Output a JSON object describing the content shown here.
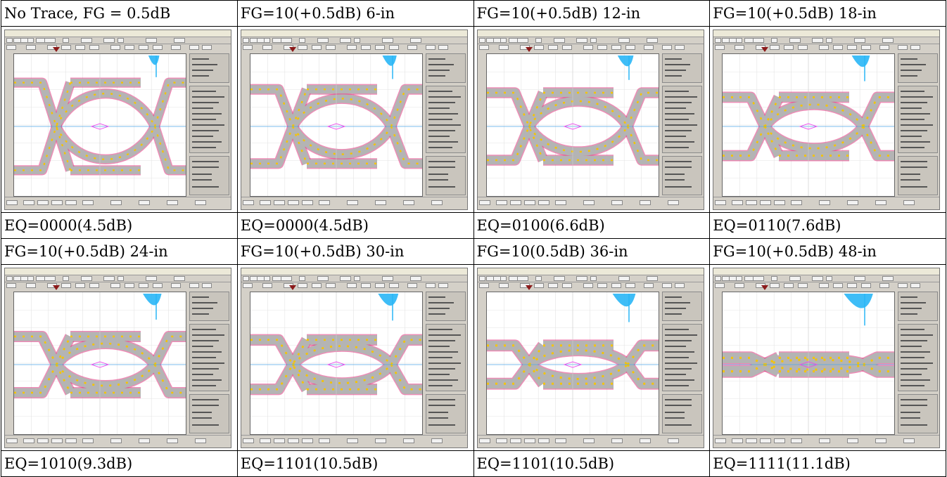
{
  "rows": [
    {
      "captions": [
        "No Trace,  FG = 0.5dB",
        "FG=10(+0.5dB)  6-in",
        "FG=10(+0.5dB)  12-in",
        "FG=10(+0.5dB)  18-in"
      ],
      "eq": [
        "EQ=0000(4.5dB)",
        "EQ=0000(4.5dB)",
        "EQ=0100(6.6dB)",
        "EQ=0110(7.6dB)"
      ]
    },
    {
      "captions": [
        "FG=10(+0.5dB)  24-in",
        "FG=10(+0.5dB)  30-in",
        "FG=10(0.5dB)  36-in",
        "FG=10(+0.5dB)  48-in"
      ],
      "eq": [
        "EQ=1010(9.3dB)",
        "EQ=1101(10.5dB)",
        "EQ=1101(10.5dB)",
        "EQ=1111(11.1dB)"
      ]
    }
  ],
  "eye_openings": [
    [
      0.78,
      0.66,
      0.6,
      0.52
    ],
    [
      0.5,
      0.44,
      0.34,
      0.12
    ]
  ],
  "colors": {
    "eye_gray": "#b4b4b4",
    "eye_edge": "#e0307c",
    "hot": "#f5c400",
    "jitter_histogram": "#29b6f6",
    "crosshair": "#4fa8e8",
    "mask": "#ee44ee"
  }
}
